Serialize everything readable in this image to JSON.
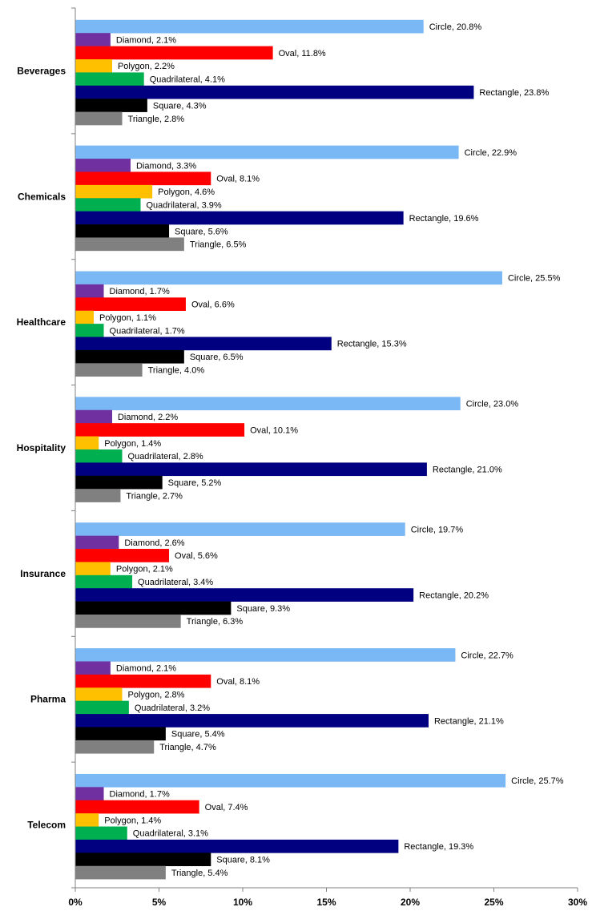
{
  "chart_data": {
    "type": "bar",
    "orientation": "horizontal",
    "categories": [
      "Beverages",
      "Chemicals",
      "Healthcare",
      "Hospitality",
      "Insurance",
      "Pharma",
      "Telecom"
    ],
    "series": [
      {
        "name": "Circle",
        "color": "#7ab8f5",
        "values": [
          20.8,
          22.9,
          25.5,
          23.0,
          19.7,
          22.7,
          25.7
        ]
      },
      {
        "name": "Diamond",
        "color": "#7030a0",
        "values": [
          2.1,
          3.3,
          1.7,
          2.2,
          2.6,
          2.1,
          1.7
        ]
      },
      {
        "name": "Oval",
        "color": "#ff0000",
        "values": [
          11.8,
          8.1,
          6.6,
          10.1,
          5.6,
          8.1,
          7.4
        ]
      },
      {
        "name": "Polygon",
        "color": "#ffc000",
        "values": [
          2.2,
          4.6,
          1.1,
          1.4,
          2.1,
          2.8,
          1.4
        ]
      },
      {
        "name": "Quadrilateral",
        "color": "#00b050",
        "values": [
          4.1,
          3.9,
          1.7,
          2.8,
          3.4,
          3.2,
          3.1
        ]
      },
      {
        "name": "Rectangle",
        "color": "#000080",
        "values": [
          23.8,
          19.6,
          15.3,
          21.0,
          20.2,
          21.1,
          19.3
        ]
      },
      {
        "name": "Square",
        "color": "#000000",
        "values": [
          4.3,
          5.6,
          6.5,
          5.2,
          9.3,
          5.4,
          8.1
        ]
      },
      {
        "name": "Triangle",
        "color": "#808080",
        "values": [
          2.8,
          6.5,
          4.0,
          2.7,
          6.3,
          4.7,
          5.4
        ]
      }
    ],
    "data_labels": [
      [
        "Circle, 20.8%",
        "Diamond, 2.1%",
        "Oval, 11.8%",
        "Polygon, 2.2%",
        "Quadrilateral, 4.1%",
        "Rectangle, 23.8%",
        "Square, 4.3%",
        "Triangle, 2.8%"
      ],
      [
        "Circle, 22.9%",
        "Diamond, 3.3%",
        "Oval, 8.1%",
        "Polygon, 4.6%",
        "Quadrilateral, 3.9%",
        "Rectangle, 19.6%",
        "Square, 5.6%",
        "Triangle, 6.5%"
      ],
      [
        "Circle, 25.5%",
        "Diamond, 1.7%",
        "Oval, 6.6%",
        "Polygon, 1.1%",
        "Quadrilateral, 1.7%",
        "Rectangle, 15.3%",
        "Square, 6.5%",
        "Triangle, 4.0%"
      ],
      [
        "Circle, 23.0%",
        "Diamond, 2.2%",
        "Oval, 10.1%",
        "Polygon, 1.4%",
        "Quadrilateral, 2.8%",
        "Rectangle, 21.0%",
        "Square, 5.2%",
        "Triangle, 2.7%"
      ],
      [
        "Circle, 19.7%",
        "Diamond, 2.6%",
        "Oval, 5.6%",
        "Polygon, 2.1%",
        "Quadrilateral, 3.4%",
        "Rectangle, 20.2%",
        "Square, 9.3%",
        "Triangle, 6.3%"
      ],
      [
        "Circle, 22.7%",
        "Diamond, 2.1%",
        "Oval, 8.1%",
        "Polygon, 2.8%",
        "Quadrilateral, 3.2%",
        "Rectangle, 21.1%",
        "Square, 5.4%",
        "Triangle, 4.7%"
      ],
      [
        "Circle, 25.7%",
        "Diamond, 1.7%",
        "Oval, 7.4%",
        "Polygon, 1.4%",
        "Quadrilateral, 3.1%",
        "Rectangle, 19.3%",
        "Square, 8.1%",
        "Triangle, 5.4%"
      ]
    ],
    "x_ticks": [
      "0%",
      "5%",
      "10%",
      "15%",
      "20%",
      "25%",
      "30%"
    ],
    "xlim": [
      0,
      30
    ],
    "title": "",
    "xlabel": "",
    "ylabel": "",
    "grid": false,
    "legend": "none"
  }
}
